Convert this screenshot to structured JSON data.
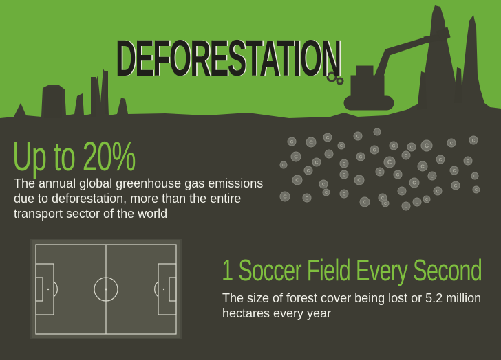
{
  "header": {
    "title": "DEFORESTATION"
  },
  "colors": {
    "sky_green": "#6cae3c",
    "ground_dark": "#3d3c33",
    "accent_green": "#7fbf3f",
    "silhouette": "#3b3a31",
    "field_green": "#56564a",
    "coin": "#6f6f66"
  },
  "emissions_stat": {
    "value": "Up to 20%",
    "description": "The annual global greenhouse gas emissions due to deforestation, more than the entire transport sector of the world"
  },
  "soccer_stat": {
    "title": "1 Soccer Field Every Second",
    "description": "The size of forest cover being lost or 5.2 million hectares every year"
  },
  "illustrations": {
    "excavator": "excavator-illustration",
    "tree_stumps": "tree-stumps-silhouette",
    "carbon_coins": "carbon-coin-icons",
    "soccer_field": "soccer-field-diagram"
  }
}
